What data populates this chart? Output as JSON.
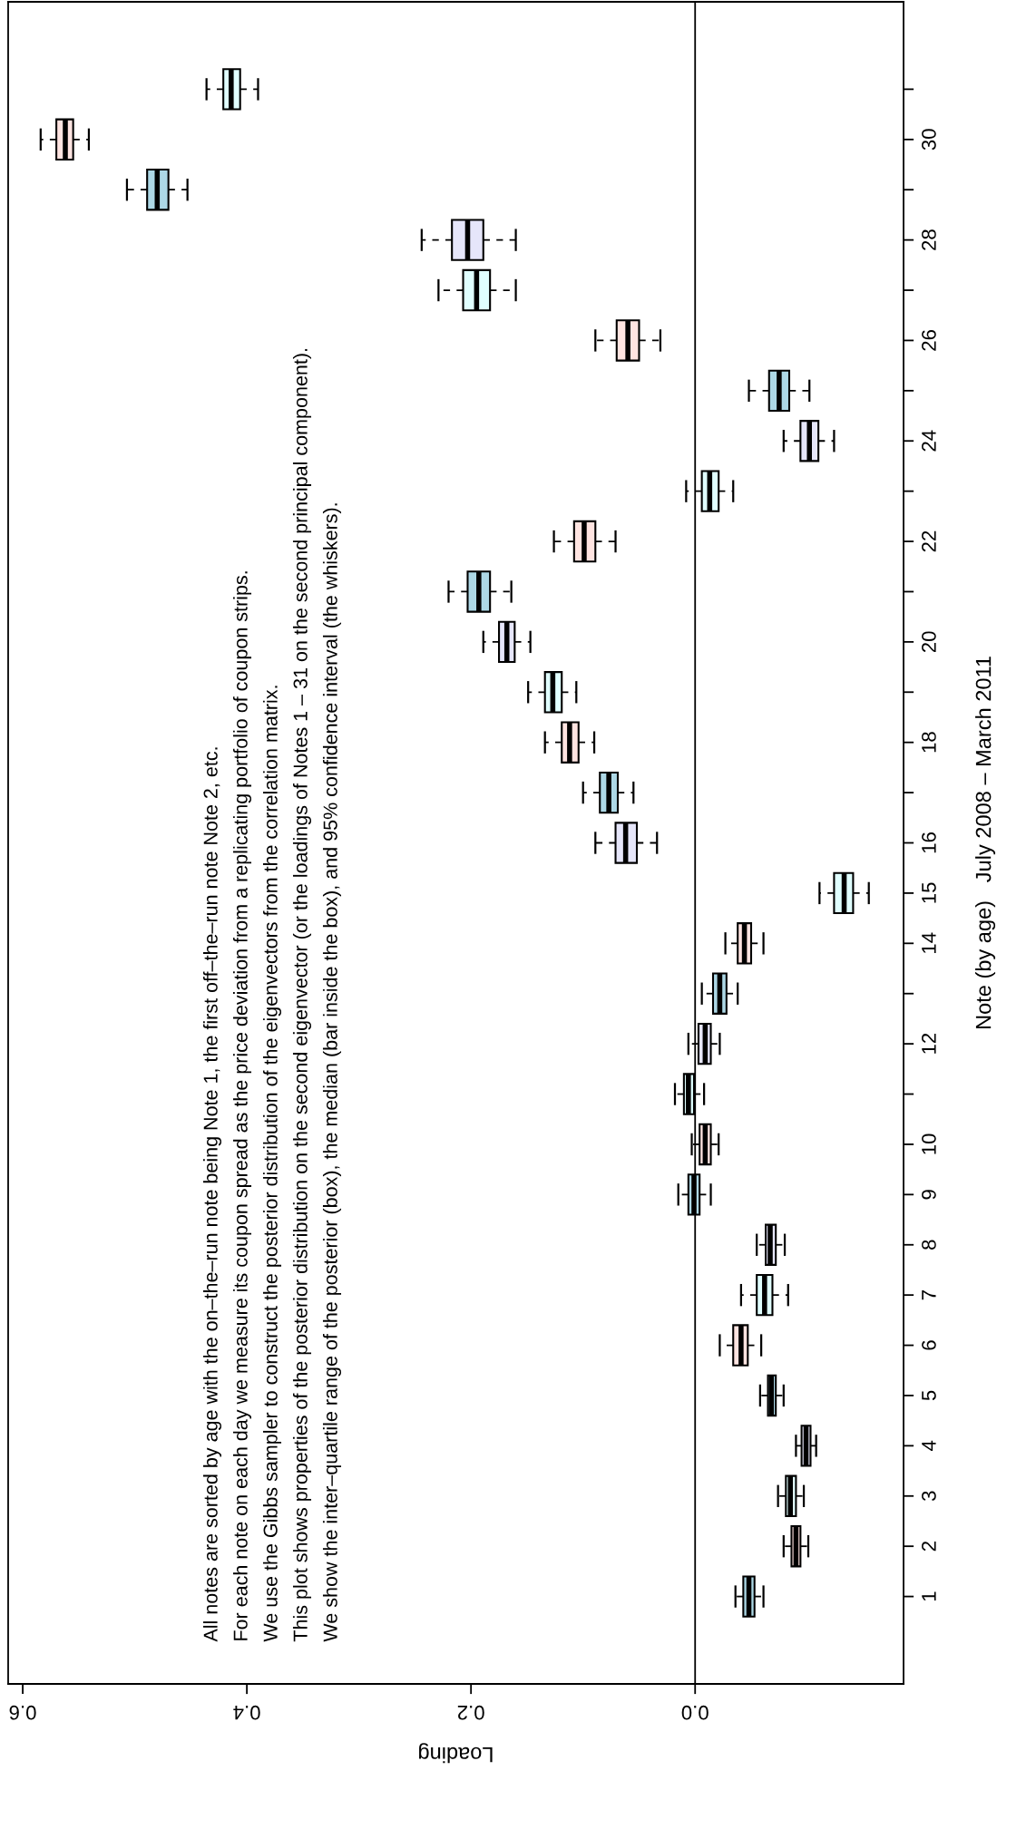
{
  "chart_data": {
    "type": "box",
    "orientation": "horizontal",
    "xlabel": "Loading",
    "ylabel": "Note (by age)   July 2008 – March 2011",
    "categories": [
      null,
      "30",
      null,
      "28",
      null,
      "26",
      null,
      "24",
      null,
      "22",
      null,
      "20",
      null,
      "18",
      null,
      "16",
      "15",
      "14",
      null,
      "12",
      null,
      "10",
      "9",
      "8",
      "7",
      "6",
      "5",
      "4",
      "3",
      "2",
      "1"
    ],
    "colors": [
      "#e0ffff",
      "#ffe4e1",
      "#add8e6",
      "#e6e6fa",
      "#e0ffff",
      "#ffe4e1",
      "#add8e6",
      "#e6e6fa",
      "#e0ffff",
      "#ffe4e1",
      "#add8e6",
      "#e6e6fa",
      "#e0ffff",
      "#ffe4e1",
      "#add8e6",
      "#e6e6fa",
      "#e0ffff",
      "#ffe4e1",
      "#add8e6",
      "#e6e6fa",
      "#e0ffff",
      "#ffe4e1",
      "#add8e6",
      "#e6e6fa",
      "#e0ffff",
      "#ffe4e1",
      "#add8e6",
      "#e6e6fa",
      "#e0ffff",
      "#ffe4e1",
      "#add8e6"
    ],
    "boxes": [
      {
        "low": 0.39,
        "q1": 0.406,
        "median": 0.414,
        "q3": 0.421,
        "high": 0.436
      },
      {
        "low": 0.541,
        "q1": 0.555,
        "median": 0.562,
        "q3": 0.57,
        "high": 0.584
      },
      {
        "low": 0.453,
        "q1": 0.47,
        "median": 0.48,
        "q3": 0.489,
        "high": 0.507
      },
      {
        "low": 0.16,
        "q1": 0.189,
        "median": 0.203,
        "q3": 0.217,
        "high": 0.244
      },
      {
        "low": 0.16,
        "q1": 0.183,
        "median": 0.195,
        "q3": 0.207,
        "high": 0.229
      },
      {
        "low": 0.031,
        "q1": 0.05,
        "median": 0.06,
        "q3": 0.07,
        "high": 0.089
      },
      {
        "low": -0.102,
        "q1": -0.084,
        "median": -0.075,
        "q3": -0.066,
        "high": -0.048
      },
      {
        "low": -0.124,
        "q1": -0.11,
        "median": -0.102,
        "q3": -0.094,
        "high": -0.079
      },
      {
        "low": -0.034,
        "q1": -0.021,
        "median": -0.013,
        "q3": -0.006,
        "high": 0.008
      },
      {
        "low": 0.071,
        "q1": 0.089,
        "median": 0.099,
        "q3": 0.108,
        "high": 0.126
      },
      {
        "low": 0.164,
        "q1": 0.183,
        "median": 0.193,
        "q3": 0.203,
        "high": 0.22
      },
      {
        "low": 0.147,
        "q1": 0.161,
        "median": 0.168,
        "q3": 0.175,
        "high": 0.189
      },
      {
        "low": 0.106,
        "q1": 0.119,
        "median": 0.127,
        "q3": 0.134,
        "high": 0.149
      },
      {
        "low": 0.09,
        "q1": 0.104,
        "median": 0.112,
        "q3": 0.119,
        "high": 0.134
      },
      {
        "low": 0.055,
        "q1": 0.069,
        "median": 0.077,
        "q3": 0.085,
        "high": 0.1
      },
      {
        "low": 0.034,
        "q1": 0.052,
        "median": 0.062,
        "q3": 0.071,
        "high": 0.089
      },
      {
        "low": -0.155,
        "q1": -0.141,
        "median": -0.133,
        "q3": -0.124,
        "high": -0.111
      },
      {
        "low": -0.061,
        "q1": -0.05,
        "median": -0.044,
        "q3": -0.038,
        "high": -0.027
      },
      {
        "low": -0.038,
        "q1": -0.028,
        "median": -0.022,
        "q3": -0.016,
        "high": -0.006
      },
      {
        "low": -0.022,
        "q1": -0.014,
        "median": -0.009,
        "q3": -0.003,
        "high": 0.006
      },
      {
        "low": -0.008,
        "q1": 0.001,
        "median": 0.006,
        "q3": 0.01,
        "high": 0.018
      },
      {
        "low": -0.021,
        "q1": -0.014,
        "median": -0.009,
        "q3": -0.004,
        "high": 0.003
      },
      {
        "low": -0.014,
        "q1": -0.004,
        "median": 0.001,
        "q3": 0.006,
        "high": 0.015
      },
      {
        "low": -0.08,
        "q1": -0.072,
        "median": -0.067,
        "q3": -0.063,
        "high": -0.055
      },
      {
        "low": -0.083,
        "q1": -0.069,
        "median": -0.062,
        "q3": -0.055,
        "high": -0.041
      },
      {
        "low": -0.059,
        "q1": -0.047,
        "median": -0.041,
        "q3": -0.034,
        "high": -0.022
      },
      {
        "low": -0.079,
        "q1": -0.072,
        "median": -0.068,
        "q3": -0.065,
        "high": -0.058
      },
      {
        "low": -0.108,
        "q1": -0.103,
        "median": -0.099,
        "q3": -0.095,
        "high": -0.09
      },
      {
        "low": -0.097,
        "q1": -0.09,
        "median": -0.085,
        "q3": -0.081,
        "high": -0.074
      },
      {
        "low": -0.101,
        "q1": -0.094,
        "median": -0.09,
        "q3": -0.086,
        "high": -0.079
      },
      {
        "low": -0.061,
        "q1": -0.053,
        "median": -0.048,
        "q3": -0.043,
        "high": -0.036
      }
    ],
    "xlim": [
      0.613,
      -0.186
    ],
    "xticks": [
      0.6,
      0.4,
      0.2,
      {
        "value": 0,
        "label": "0.0"
      }
    ],
    "ref_lines": [
      {
        "axis": "x",
        "value": 0,
        "color": "#000000"
      }
    ],
    "grid": false,
    "annotations": [
      "All notes are sorted by age with the on–the–run note being Note 1, the first off–the–run note Note 2, etc.",
      "For each note on each day we measure its coupon spread as the price deviation from a replicating portfolio of coupon strips.",
      "We use the Gibbs sampler to construct the posterior distribution of the eigenvectors from the correlation matrix.",
      "This plot shows properties of the posterior distribution on the second eigenvector (or the loadings of Notes 1 – 31 on the second principal component).",
      "We show the inter–quartile range of the posterior (box), the median (bar inside the box), and 95% confidence interval (the whiskers)."
    ]
  }
}
